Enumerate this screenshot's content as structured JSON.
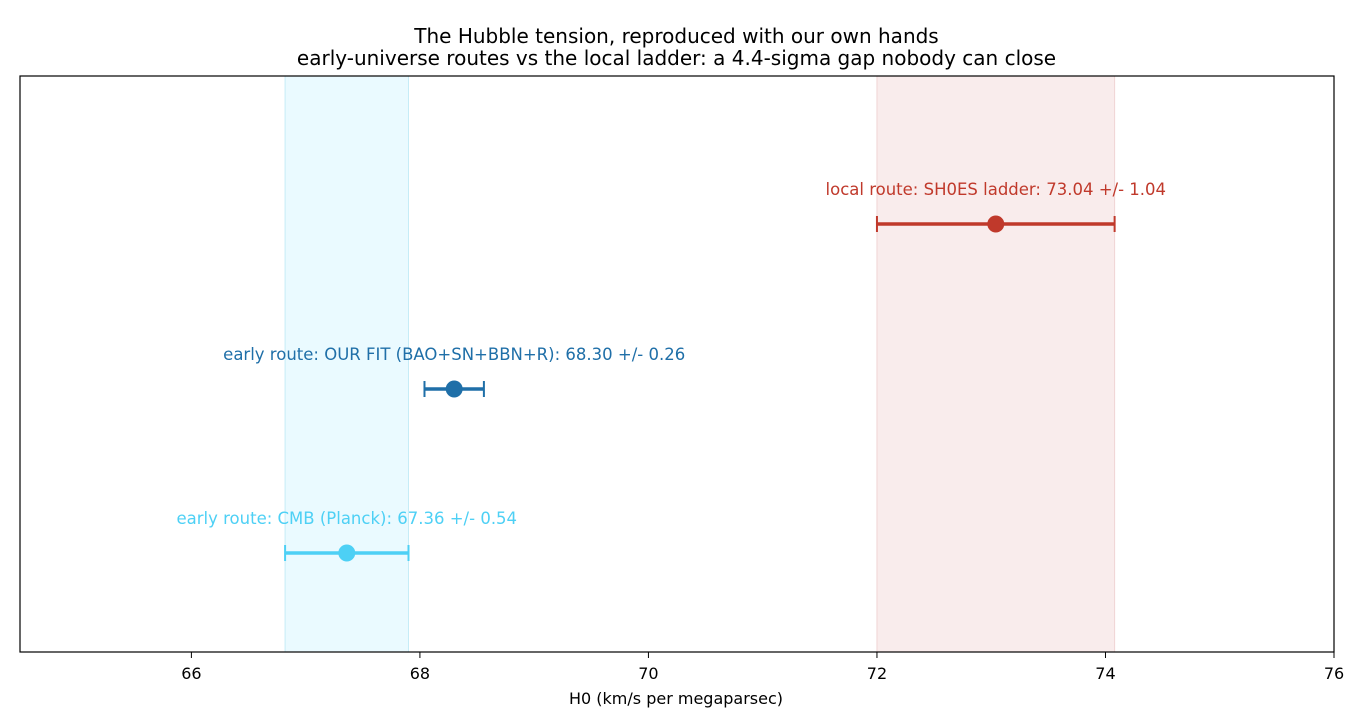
{
  "chart_data": {
    "type": "scatter",
    "title": "The Hubble tension, reproduced with our own hands",
    "subtitle": "early-universe routes vs the local ladder: a 4.4-sigma gap nobody can close",
    "xlabel": "H0   (km/s per megaparsec)",
    "ylabel": "",
    "xlim": [
      64.5,
      76
    ],
    "xticks": [
      66,
      68,
      70,
      72,
      74,
      76
    ],
    "grid": false,
    "series": [
      {
        "label": "local route: SH0ES ladder: 73.04 +/- 1.04",
        "value": 73.04,
        "error": 1.04,
        "color": "#c0392b",
        "band_color": "#f9ecec",
        "band_edge": "#f0d4d4"
      },
      {
        "label": "early route: OUR FIT (BAO+SN+BBN+R): 68.30 +/- 0.26",
        "value": 68.3,
        "error": 0.26,
        "color": "#1f6fa8"
      },
      {
        "label": "early route: CMB (Planck): 67.36 +/- 0.54",
        "value": 67.36,
        "error": 0.54,
        "color": "#4dd0f5",
        "band_color": "#eafaff",
        "band_edge": "#c6ecf7"
      }
    ]
  }
}
